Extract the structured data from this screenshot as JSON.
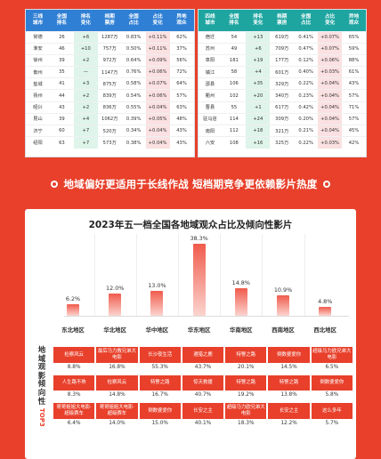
{
  "left_table": {
    "headers": [
      "三线\n城市",
      "全国\n排名",
      "排名\n变化",
      "档期\n票房",
      "全国\n占比",
      "占比\n变化",
      "异地\n观众"
    ],
    "rows": [
      [
        "常德",
        "26",
        "+6",
        "1287万",
        "0.83%",
        "+0.11%",
        "62%"
      ],
      [
        "淮安",
        "46",
        "+10",
        "757万",
        "0.50%",
        "+0.11%",
        "37%"
      ],
      [
        "徐州",
        "39",
        "+2",
        "972万",
        "0.64%",
        "+0.09%",
        "56%"
      ],
      [
        "衡州",
        "35",
        "—",
        "1147万",
        "0.76%",
        "+0.06%",
        "72%"
      ],
      [
        "盐城",
        "41",
        "+3",
        "875万",
        "0.58%",
        "+0.07%",
        "64%"
      ],
      [
        "扬州",
        "44",
        "+2",
        "839万",
        "0.54%",
        "+0.06%",
        "57%"
      ],
      [
        "昭兴",
        "43",
        "+2",
        "836万",
        "0.55%",
        "+0.04%",
        "63%"
      ],
      [
        "昆山",
        "39",
        "+4",
        "1062万",
        "0.39%",
        "+0.05%",
        "48%"
      ],
      [
        "济宁",
        "60",
        "+7",
        "520万",
        "0.34%",
        "+0.04%",
        "43%"
      ],
      [
        "绍阳",
        "63",
        "+7",
        "573万",
        "0.38%",
        "+0.04%",
        "43%"
      ]
    ]
  },
  "right_table": {
    "headers": [
      "四线\n城市",
      "全国\n排名",
      "排名\n变化",
      "档期\n票房",
      "全国\n占比",
      "占比\n变化",
      "异地\n观众"
    ],
    "rows": [
      [
        "宿迁",
        "54",
        "+13",
        "619万",
        "0.41%",
        "+0.07%",
        "65%"
      ],
      [
        "苏州",
        "49",
        "+6",
        "709万",
        "0.47%",
        "+0.07%",
        "59%"
      ],
      [
        "阜阳",
        "181",
        "+19",
        "177万",
        "0.12%",
        "+0.06%",
        "88%"
      ],
      [
        "镇江",
        "58",
        "+4",
        "601万",
        "0.40%",
        "+0.03%",
        "61%"
      ],
      [
        "邵县",
        "106",
        "+35",
        "329万",
        "0.22%",
        "+0.04%",
        "43%"
      ],
      [
        "衢州",
        "102",
        "+20",
        "340万",
        "0.23%",
        "+0.04%",
        "57%"
      ],
      [
        "曹县",
        "55",
        "+1",
        "617万",
        "0.42%",
        "+0.04%",
        "71%"
      ],
      [
        "驻马店",
        "114",
        "+24",
        "309万",
        "0.20%",
        "+0.04%",
        "57%"
      ],
      [
        "南阳",
        "112",
        "+18",
        "321万",
        "0.21%",
        "+0.04%",
        "45%"
      ],
      [
        "六安",
        "108",
        "+16",
        "325万",
        "0.22%",
        "+0.03%",
        "42%"
      ]
    ]
  },
  "banner": {
    "text": "地域偏好更适用于长线作战 短档期竞争更依赖影片热度"
  },
  "chart_title": "2023年五一档全国各地域观众占比及倾向性影片",
  "chart_data": {
    "type": "bar",
    "categories": [
      "东北地区",
      "华北地区",
      "华中地区",
      "华东地区",
      "华南地区",
      "西南地区",
      "西北地区"
    ],
    "values": [
      6.2,
      12.0,
      13.0,
      38.3,
      14.8,
      10.9,
      4.8
    ],
    "value_labels": [
      "6.2%",
      "12.0%",
      "13.0%",
      "38.3%",
      "14.8%",
      "10.9%",
      "4.8%"
    ],
    "ylim": [
      0,
      40
    ],
    "colors": {
      "bar_top": "#f05b4c",
      "bar_bottom": "#fbd4cf"
    }
  },
  "side_label": {
    "chars": [
      "地",
      "域",
      "观",
      "影",
      "倾",
      "向",
      "性"
    ],
    "top3": "TOP3"
  },
  "genres": [
    {
      "titles": [
        "检察风云",
        "最后马力救兄弟大电影",
        "长沙夜生活",
        "遵猎之鹿",
        "特警之路",
        "倒数婆爱你",
        "超级马力欧兄弟大电影"
      ],
      "pcts": [
        "8.8%",
        "16.8%",
        "55.3%",
        "43.7%",
        "20.1%",
        "14.5%",
        "6.5%"
      ]
    },
    {
      "titles": [
        "人生路不熟",
        "检察风云",
        "特警之路",
        "惊天救援",
        "特警之路",
        "特警之路",
        "倒数婆爱你"
      ],
      "pcts": [
        "8.3%",
        "14.8%",
        "16.7%",
        "40.7%",
        "19.2%",
        "13.8%",
        "5.8%"
      ]
    },
    {
      "titles": [
        "哥哥姐姐大电影·超级赛车",
        "哥哥姐姐大电影·超级赛车",
        "倒数婆爱你",
        "长安之主",
        "超级马力欧兄弟大电影",
        "长安之主",
        "这么多年"
      ],
      "pcts": [
        "6.4%",
        "14.0%",
        "15.0%",
        "40.1%",
        "18.3%",
        "12.2%",
        "5.7%"
      ]
    }
  ],
  "colors": {
    "page_bg": "#e8402b",
    "left_header": "#2f7fd4",
    "right_header": "#1ea5a0",
    "accent": "#e8402b"
  }
}
